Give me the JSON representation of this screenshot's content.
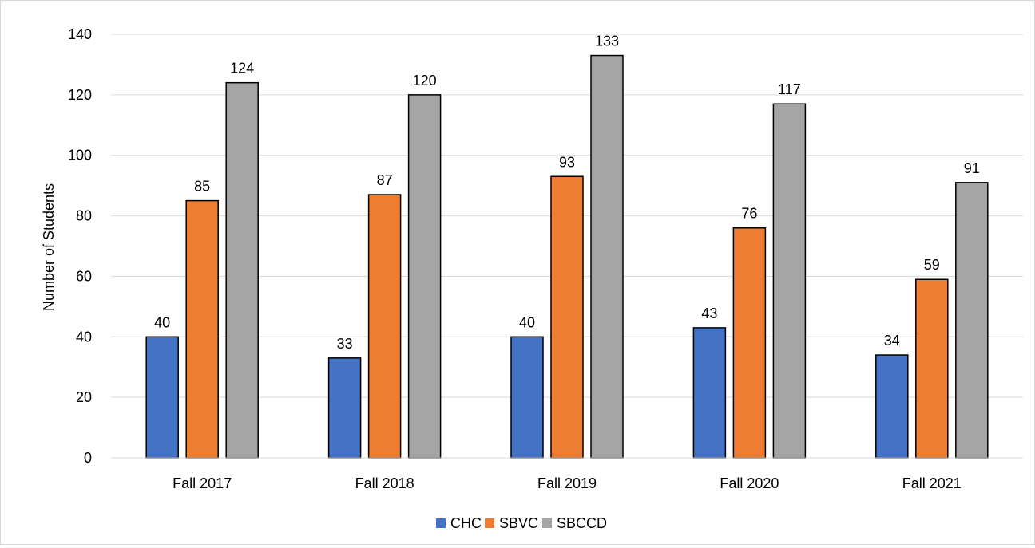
{
  "chart_data": {
    "type": "bar",
    "title": "",
    "xlabel": "",
    "ylabel": "Number of Students",
    "ylim": [
      0,
      140
    ],
    "yticks": [
      0,
      20,
      40,
      60,
      80,
      100,
      120,
      140
    ],
    "grid": true,
    "legend_position": "bottom",
    "categories": [
      "Fall 2017",
      "Fall 2018",
      "Fall 2019",
      "Fall 2020",
      "Fall 2021"
    ],
    "series": [
      {
        "name": "CHC",
        "color": "#4472C4",
        "values": [
          40,
          33,
          40,
          43,
          34
        ]
      },
      {
        "name": "SBVC",
        "color": "#ED7D31",
        "values": [
          85,
          87,
          93,
          76,
          59
        ]
      },
      {
        "name": "SBCCD",
        "color": "#A5A5A5",
        "values": [
          124,
          120,
          133,
          117,
          91
        ]
      }
    ]
  }
}
